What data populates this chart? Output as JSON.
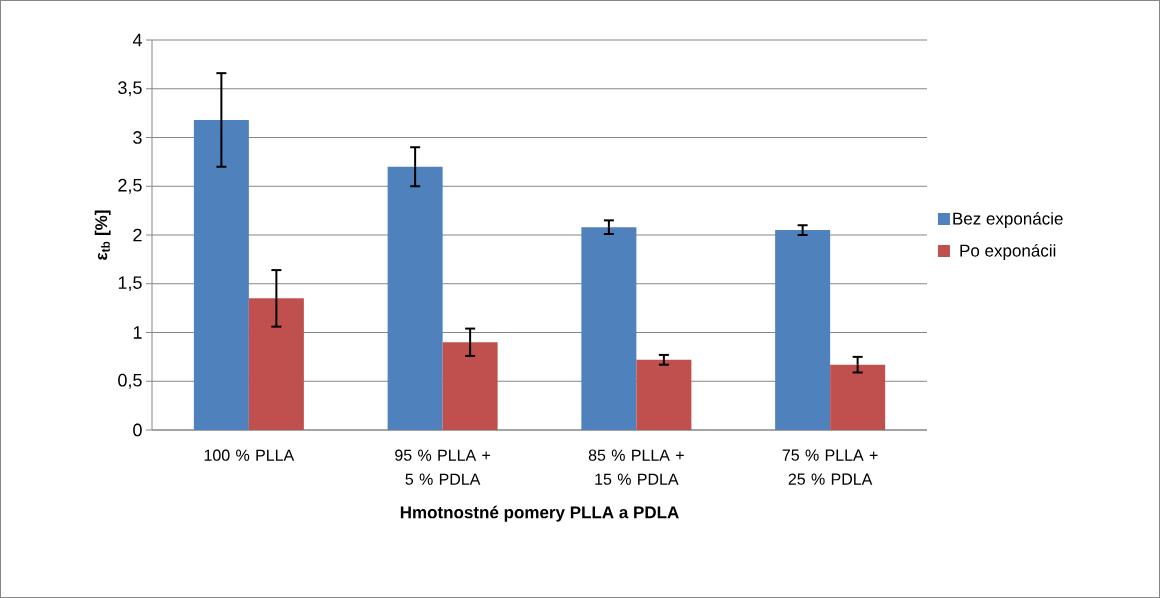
{
  "chart_data": {
    "type": "bar",
    "xlabel": "Hmotnostné pomery PLLA a PDLA",
    "ylabel": "ε$_{tb}$ [%]",
    "categories": [
      "100 % PLLA",
      "95 % PLLA + 5 % PDLA",
      "85 % PLLA + 15 % PDLA",
      "75 % PLLA + 25 % PDLA"
    ],
    "series": [
      {
        "name": "Bez exponácie",
        "color": "#4f81bd",
        "values": [
          3.18,
          2.7,
          2.08,
          2.05
        ],
        "errors": [
          0.48,
          0.2,
          0.07,
          0.05
        ]
      },
      {
        "name": "Po exponácii",
        "color": "#c0504d",
        "values": [
          1.35,
          0.9,
          0.72,
          0.67
        ],
        "errors": [
          0.29,
          0.14,
          0.05,
          0.08
        ]
      }
    ],
    "ylim": [
      0,
      4
    ],
    "yticks": [
      0,
      {
        "value": 0.5,
        "label": "0,5"
      },
      1,
      {
        "value": 1.5,
        "label": "1,5"
      },
      2,
      {
        "value": 2.5,
        "label": "2,5"
      },
      3,
      {
        "value": 3.5,
        "label": "3,5"
      },
      4
    ],
    "grid": "y",
    "legend": "right"
  }
}
